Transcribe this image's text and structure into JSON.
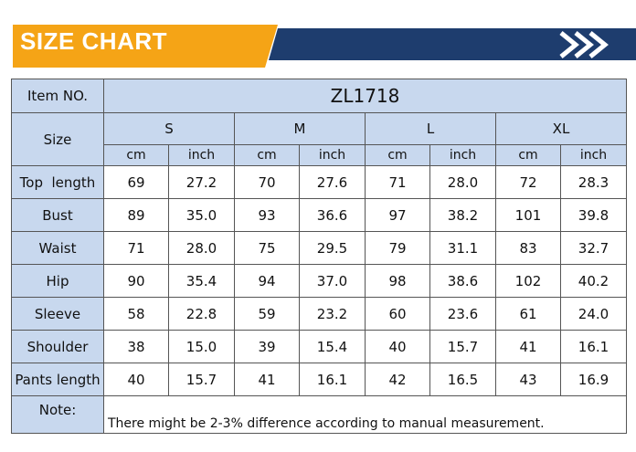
{
  "banner": {
    "title": "SIZE CHART",
    "colors": {
      "orange": "#f5a416",
      "navy": "#1e3d6e",
      "arrows": "#ffffff"
    },
    "icon": "double-chevron-right-icon"
  },
  "table": {
    "item_label": "Item NO.",
    "model": "ZL1718",
    "size_label": "Size",
    "sizes": [
      "S",
      "M",
      "L",
      "XL"
    ],
    "units": [
      "cm",
      "inch"
    ],
    "rows": [
      {
        "label": "Top  length",
        "values": [
          "69",
          "27.2",
          "70",
          "27.6",
          "71",
          "28.0",
          "72",
          "28.3"
        ]
      },
      {
        "label": "Bust",
        "values": [
          "89",
          "35.0",
          "93",
          "36.6",
          "97",
          "38.2",
          "101",
          "39.8"
        ]
      },
      {
        "label": "Waist",
        "values": [
          "71",
          "28.0",
          "75",
          "29.5",
          "79",
          "31.1",
          "83",
          "32.7"
        ]
      },
      {
        "label": "Hip",
        "values": [
          "90",
          "35.4",
          "94",
          "37.0",
          "98",
          "38.6",
          "102",
          "40.2"
        ]
      },
      {
        "label": "Sleeve",
        "values": [
          "58",
          "22.8",
          "59",
          "23.2",
          "60",
          "23.6",
          "61",
          "24.0"
        ]
      },
      {
        "label": "Shoulder",
        "values": [
          "38",
          "15.0",
          "39",
          "15.4",
          "40",
          "15.7",
          "41",
          "16.1"
        ]
      },
      {
        "label": "Pants length",
        "values": [
          "40",
          "15.7",
          "41",
          "16.1",
          "42",
          "16.5",
          "43",
          "16.9"
        ]
      }
    ],
    "note_label": "Note:",
    "note_text": "There might be 2-3% difference according to manual measurement.",
    "header_bg": "#c8d8ee"
  }
}
